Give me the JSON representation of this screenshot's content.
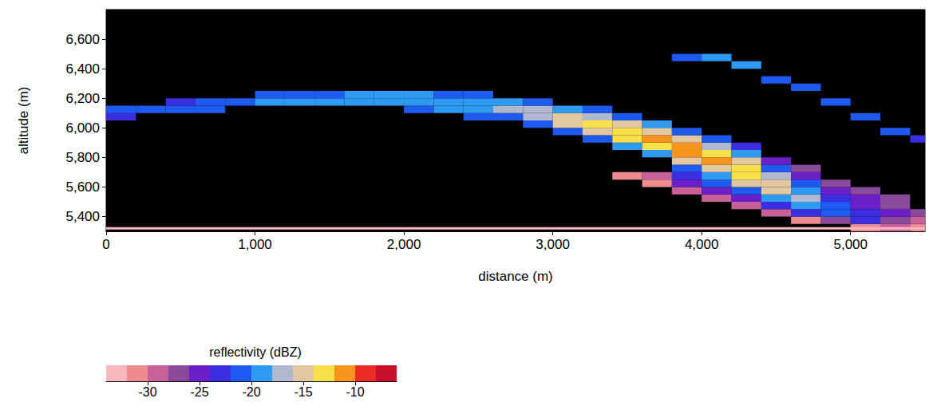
{
  "chart_data": {
    "type": "heatmap",
    "x_label": "distance (m)",
    "y_label": "altitude (m)",
    "xlim": [
      0,
      5500
    ],
    "xticks": [
      0,
      1000,
      2000,
      3000,
      4000,
      5000
    ],
    "ylim": [
      5300,
      6800
    ],
    "yticks": [
      5400,
      5600,
      5800,
      6000,
      6200,
      6400,
      6600
    ],
    "grid": false,
    "cell_size": [
      200,
      50
    ],
    "cells": [
      [
        0,
        6050,
        -23
      ],
      [
        0,
        6100,
        -22
      ],
      [
        200,
        6100,
        -22
      ],
      [
        400,
        6100,
        -22
      ],
      [
        400,
        6150,
        -23
      ],
      [
        600,
        6100,
        -21
      ],
      [
        600,
        6150,
        -22
      ],
      [
        800,
        6150,
        -21
      ],
      [
        1000,
        6150,
        -20
      ],
      [
        1000,
        6200,
        -22
      ],
      [
        1200,
        6150,
        -20
      ],
      [
        1200,
        6200,
        -21
      ],
      [
        1400,
        6150,
        -20
      ],
      [
        1400,
        6200,
        -21
      ],
      [
        1600,
        6150,
        -20
      ],
      [
        1600,
        6200,
        -20
      ],
      [
        1800,
        6150,
        -20
      ],
      [
        1800,
        6200,
        -20
      ],
      [
        2000,
        6100,
        -21
      ],
      [
        2000,
        6150,
        -19
      ],
      [
        2000,
        6200,
        -20
      ],
      [
        2200,
        6100,
        -20
      ],
      [
        2200,
        6150,
        -19
      ],
      [
        2200,
        6200,
        -21
      ],
      [
        2400,
        6050,
        -22
      ],
      [
        2400,
        6100,
        -19
      ],
      [
        2400,
        6150,
        -19
      ],
      [
        2400,
        6200,
        -21
      ],
      [
        2600,
        6050,
        -21
      ],
      [
        2600,
        6100,
        -18
      ],
      [
        2600,
        6150,
        -19
      ],
      [
        2800,
        6000,
        -21
      ],
      [
        2800,
        6050,
        -17
      ],
      [
        2800,
        6100,
        -17
      ],
      [
        2800,
        6150,
        -21
      ],
      [
        3000,
        5950,
        -22
      ],
      [
        3000,
        6000,
        -16
      ],
      [
        3000,
        6050,
        -15
      ],
      [
        3000,
        6100,
        -19
      ],
      [
        3200,
        5900,
        -21
      ],
      [
        3200,
        5950,
        -15
      ],
      [
        3200,
        6000,
        -14
      ],
      [
        3200,
        6050,
        -17
      ],
      [
        3200,
        6100,
        -22
      ],
      [
        3400,
        5650,
        -31
      ],
      [
        3400,
        5850,
        -20
      ],
      [
        3400,
        5900,
        -14
      ],
      [
        3400,
        5950,
        -13
      ],
      [
        3400,
        6000,
        -16
      ],
      [
        3400,
        6050,
        -21
      ],
      [
        3600,
        5600,
        -31
      ],
      [
        3600,
        5650,
        -29
      ],
      [
        3600,
        5800,
        -19
      ],
      [
        3600,
        5850,
        -13
      ],
      [
        3600,
        5900,
        -11
      ],
      [
        3600,
        5950,
        -15
      ],
      [
        3600,
        6000,
        -20
      ],
      [
        3800,
        5550,
        -30
      ],
      [
        3800,
        5600,
        -26
      ],
      [
        3800,
        5650,
        -23
      ],
      [
        3800,
        5700,
        -21
      ],
      [
        3800,
        5750,
        -16
      ],
      [
        3800,
        5800,
        -11
      ],
      [
        3800,
        5850,
        -12
      ],
      [
        3800,
        5900,
        -16
      ],
      [
        3800,
        5950,
        -21
      ],
      [
        3800,
        6450,
        -21
      ],
      [
        4000,
        5500,
        -30
      ],
      [
        4000,
        5550,
        -25
      ],
      [
        4000,
        5600,
        -22
      ],
      [
        4000,
        5650,
        -20
      ],
      [
        4000,
        5700,
        -15
      ],
      [
        4000,
        5750,
        -11
      ],
      [
        4000,
        5800,
        -13
      ],
      [
        4000,
        5850,
        -17
      ],
      [
        4000,
        5900,
        -22
      ],
      [
        4000,
        6450,
        -20
      ],
      [
        4200,
        5450,
        -30
      ],
      [
        4200,
        5500,
        -26
      ],
      [
        4200,
        5550,
        -22
      ],
      [
        4200,
        5600,
        -16
      ],
      [
        4200,
        5650,
        -13
      ],
      [
        4200,
        5700,
        -13
      ],
      [
        4200,
        5750,
        -15
      ],
      [
        4200,
        5800,
        -19
      ],
      [
        4200,
        5850,
        -24
      ],
      [
        4200,
        6400,
        -20
      ],
      [
        4400,
        5400,
        -30
      ],
      [
        4400,
        5450,
        -24
      ],
      [
        4400,
        5500,
        -19
      ],
      [
        4400,
        5550,
        -15
      ],
      [
        4400,
        5600,
        -15
      ],
      [
        4400,
        5650,
        -17
      ],
      [
        4400,
        5700,
        -21
      ],
      [
        4400,
        5750,
        -25
      ],
      [
        4400,
        6300,
        -21
      ],
      [
        4600,
        5350,
        -31
      ],
      [
        4600,
        5400,
        -23
      ],
      [
        4600,
        5450,
        -19
      ],
      [
        4600,
        5500,
        -17
      ],
      [
        4600,
        5550,
        -19
      ],
      [
        4600,
        5600,
        -22
      ],
      [
        4600,
        5650,
        -25
      ],
      [
        4600,
        5700,
        -27
      ],
      [
        4600,
        6250,
        -21
      ],
      [
        4800,
        5350,
        -27
      ],
      [
        4800,
        5400,
        -21
      ],
      [
        4800,
        5450,
        -21
      ],
      [
        4800,
        5500,
        -24
      ],
      [
        4800,
        5550,
        -26
      ],
      [
        4800,
        5600,
        -27
      ],
      [
        4800,
        6150,
        -21
      ],
      [
        5000,
        5300,
        -31
      ],
      [
        5000,
        5350,
        -24
      ],
      [
        5000,
        5400,
        -24
      ],
      [
        5000,
        5450,
        -26
      ],
      [
        5000,
        5500,
        -26
      ],
      [
        5000,
        5550,
        -27
      ],
      [
        5000,
        6050,
        -21
      ],
      [
        5200,
        5300,
        -29
      ],
      [
        5200,
        5350,
        -27
      ],
      [
        5200,
        5400,
        -26
      ],
      [
        5200,
        5450,
        -27
      ],
      [
        5200,
        5500,
        -28
      ],
      [
        5200,
        5950,
        -22
      ],
      [
        5400,
        5300,
        -31
      ],
      [
        5400,
        5350,
        -29
      ],
      [
        5400,
        5400,
        -28
      ],
      [
        5400,
        5900,
        -23
      ]
    ],
    "surface": {
      "altitude": 5320,
      "reflectivity": -33
    },
    "colorbar": {
      "label": "reflectivity (dBZ)",
      "range": [
        -34,
        -6
      ],
      "ticks": [
        -30,
        -25,
        -20,
        -15,
        -10
      ],
      "colors": [
        "#f9b8bd",
        "#ef8a8f",
        "#c8609a",
        "#8a4a9c",
        "#6a1fc8",
        "#3a2fe0",
        "#1e5af0",
        "#2e9af2",
        "#b0b8d0",
        "#e2c8a0",
        "#f7e04a",
        "#f7941e",
        "#ee2a24",
        "#c8102e"
      ]
    }
  }
}
